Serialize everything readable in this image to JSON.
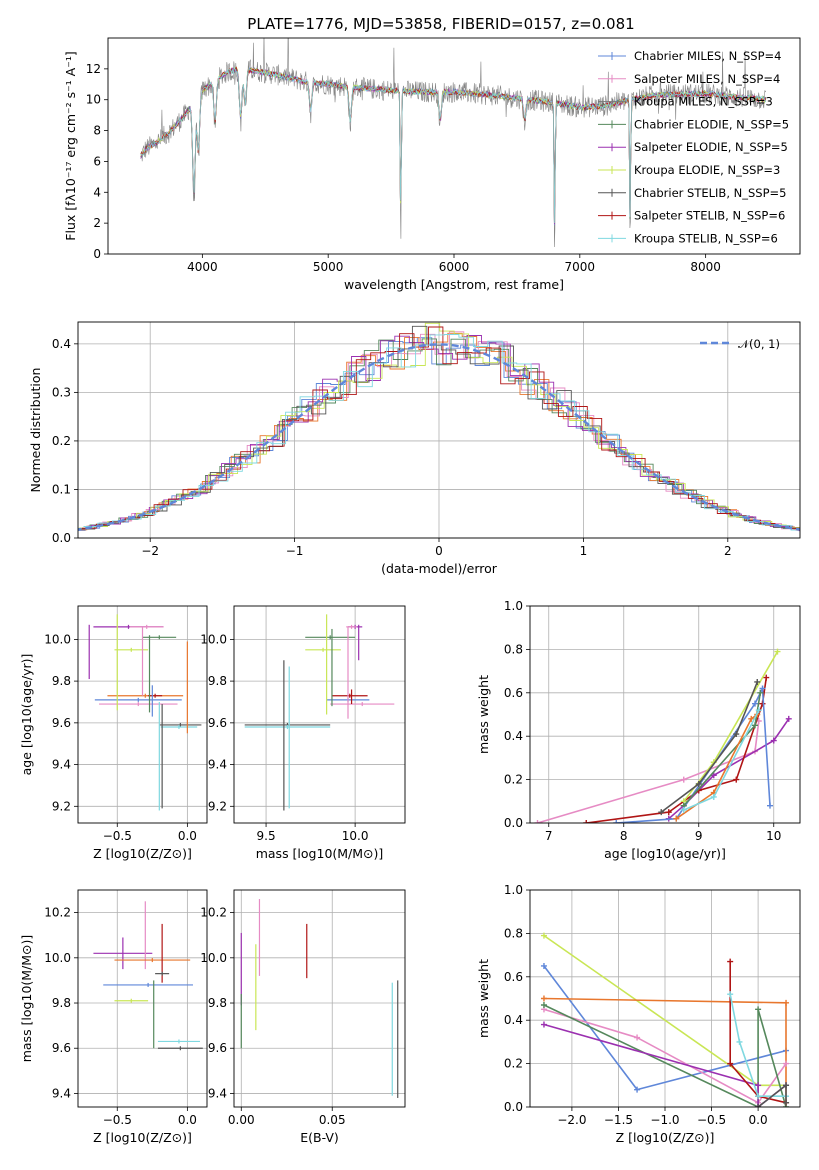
{
  "figure_title": "PLATE=1776, MJD=53858, FIBERID=0157, z=0.081",
  "colors": {
    "blue": "#5f87d9",
    "orange": "#e8772e",
    "pink": "#e68bc4",
    "green": "#55885c",
    "purple": "#9b30b0",
    "yellowgreen": "#c9e655",
    "gray": "#555555",
    "red": "#b01515",
    "cyan": "#7fd8e0"
  },
  "chart_data": [
    {
      "id": "spectrum",
      "type": "line",
      "xlabel": "wavelength [Angstrom, rest frame]",
      "ylabel": "Flux [fλ10⁻¹⁷ erg cm⁻² s⁻¹ A⁻¹]",
      "xlim": [
        3250,
        8750
      ],
      "ylim": [
        0,
        14
      ],
      "xticks": [
        4000,
        5000,
        6000,
        7000,
        8000
      ],
      "yticks": [
        0,
        2,
        4,
        6,
        8,
        10,
        12
      ],
      "grid": false,
      "legend_position": "upper right",
      "series": [
        {
          "name": "Chabrier MILES, N_SSP=4",
          "color": "#5f87d9"
        },
        {
          "name": "Salpeter MILES, N_SSP=4",
          "color": "#e68bc4"
        },
        {
          "name": "Kroupa MILES, N_SSP=3",
          "color": "#777777"
        },
        {
          "name": "Chabrier ELODIE, N_SSP=5",
          "color": "#55885c"
        },
        {
          "name": "Salpeter ELODIE, N_SSP=5",
          "color": "#9b30b0"
        },
        {
          "name": "Kroupa ELODIE, N_SSP=3",
          "color": "#c9e655"
        },
        {
          "name": "Chabrier STELIB, N_SSP=5",
          "color": "#555555"
        },
        {
          "name": "Salpeter STELIB, N_SSP=6",
          "color": "#b01515"
        },
        {
          "name": "Kroupa STELIB, N_SSP=6",
          "color": "#7fd8e0"
        }
      ],
      "continuum": {
        "x": [
          3500,
          3550,
          3650,
          3750,
          3850,
          3950,
          4000,
          4100,
          4200,
          4300,
          4400,
          4600,
          4800,
          5000,
          5200,
          5500,
          5800,
          6000,
          6300,
          6600,
          6800,
          7000,
          7200,
          7400,
          7600,
          8000,
          8200,
          8500
        ],
        "y": [
          6.2,
          6.8,
          7.3,
          8.0,
          8.9,
          10.0,
          10.6,
          11.2,
          11.8,
          12.0,
          11.9,
          11.6,
          11.2,
          11.0,
          10.8,
          10.6,
          10.5,
          10.5,
          10.3,
          10.0,
          9.8,
          9.5,
          9.6,
          10.0,
          10.3,
          10.4,
          10.2,
          10.0
        ]
      },
      "absorption_lines": [
        {
          "x": 3933,
          "depth": 6.5
        },
        {
          "x": 3968,
          "depth": 4.0
        },
        {
          "x": 4101,
          "depth": 3.0
        },
        {
          "x": 4304,
          "depth": 3.5
        },
        {
          "x": 4340,
          "depth": 2.5
        },
        {
          "x": 4861,
          "depth": 2.0
        },
        {
          "x": 5175,
          "depth": 2.5
        },
        {
          "x": 5890,
          "depth": 2.0
        },
        {
          "x": 6563,
          "depth": 1.5
        },
        {
          "x": 5577,
          "depth": 10.5
        },
        {
          "x": 6800,
          "depth": 9.8
        },
        {
          "x": 7400,
          "depth": 9.6
        }
      ]
    },
    {
      "id": "residuals",
      "type": "histogram",
      "xlabel": "(data-model)/error",
      "ylabel": "Normed distribution",
      "xlim": [
        -2.5,
        2.5
      ],
      "ylim": [
        0,
        0.445
      ],
      "xticks": [
        -2,
        -1,
        0,
        1,
        2
      ],
      "xticklabels": [
        "−2",
        "−1",
        "0",
        "1",
        "2"
      ],
      "yticks": [
        0.0,
        0.1,
        0.2,
        0.3,
        0.4
      ],
      "yticklabels": [
        "0.0",
        "0.1",
        "0.2",
        "0.3",
        "0.4"
      ],
      "grid": true,
      "bin_width": 0.1,
      "legend": "𝒩(0, 1)",
      "legend_position": "upper right"
    },
    {
      "id": "age_vs_Z",
      "type": "errorbar",
      "xlabel": "Z [log10(Z/Z⊙)]",
      "ylabel": "age  [log10(age/yr)]",
      "xlim": [
        -0.78,
        0.14
      ],
      "ylim": [
        9.12,
        10.16
      ],
      "xticks": [
        -0.5,
        0.0
      ],
      "xticklabels": [
        "−0.5",
        "0.0"
      ],
      "yticks": [
        9.2,
        9.4,
        9.6,
        9.8,
        10.0
      ],
      "yticklabels": [
        "9.2",
        "9.4",
        "9.6",
        "9.8",
        "10.0"
      ],
      "grid": true,
      "points": [
        {
          "x": -0.42,
          "y": 10.06,
          "xerr": 0.25,
          "yerr": 0.0,
          "color": "#9b30b0"
        },
        {
          "x": -0.29,
          "y": 10.06,
          "xerr": 0.12,
          "yerr": 0.0,
          "color": "#e68bc4"
        },
        {
          "x": -0.2,
          "y": 10.01,
          "xerr": 0.12,
          "yerr": 0.0,
          "color": "#55885c"
        },
        {
          "x": -0.4,
          "y": 9.95,
          "xerr": 0.12,
          "yerr": 0.0,
          "color": "#c9e655"
        },
        {
          "x": -0.3,
          "y": 9.73,
          "xerr": 0.27,
          "yerr": 0.0,
          "color": "#e8772e"
        },
        {
          "x": -0.23,
          "y": 9.73,
          "xerr": 0.05,
          "yerr": 0.0,
          "color": "#b01515"
        },
        {
          "x": -0.35,
          "y": 9.71,
          "xerr": 0.31,
          "yerr": 0.0,
          "color": "#5f87d9"
        },
        {
          "x": -0.35,
          "y": 9.69,
          "xerr": 0.28,
          "yerr": 0.0,
          "color": "#e68bc4"
        },
        {
          "x": -0.05,
          "y": 9.59,
          "xerr": 0.15,
          "yerr": 0.0,
          "color": "#555555"
        },
        {
          "x": -0.06,
          "y": 9.58,
          "xerr": 0.13,
          "yerr": 0.0,
          "color": "#7fd8e0"
        }
      ]
    },
    {
      "id": "age_vs_mass",
      "type": "errorbar",
      "xlabel": "mass [log10(M/M⊙)]",
      "ylabel": "",
      "xlim": [
        9.32,
        10.28
      ],
      "ylim": [
        9.12,
        10.16
      ],
      "xticks": [
        9.5,
        10.0
      ],
      "xticklabels": [
        "9.5",
        "10.0"
      ],
      "yticks": [
        9.2,
        9.4,
        9.6,
        9.8,
        10.0
      ],
      "yticklabels": [
        "9.2",
        "9.4",
        "9.6",
        "9.8",
        "10.0"
      ],
      "grid": true,
      "points": [
        {
          "x": 10.0,
          "y": 10.06,
          "xerr": 0.04,
          "yerr": 0.0,
          "color": "#9b30b0"
        },
        {
          "x": 9.98,
          "y": 10.06,
          "xerr": 0.03,
          "yerr": 0.0,
          "color": "#e68bc4"
        },
        {
          "x": 9.86,
          "y": 10.01,
          "xerr": 0.14,
          "yerr": 0.0,
          "color": "#55885c"
        },
        {
          "x": 9.82,
          "y": 9.95,
          "xerr": 0.1,
          "yerr": 0.0,
          "color": "#c9e655"
        },
        {
          "x": 9.97,
          "y": 9.73,
          "xerr": 0.1,
          "yerr": 0.0,
          "color": "#b01515"
        },
        {
          "x": 9.96,
          "y": 9.71,
          "xerr": 0.12,
          "yerr": 0.0,
          "color": "#5f87d9"
        },
        {
          "x": 10.04,
          "y": 9.69,
          "xerr": 0.18,
          "yerr": 0.0,
          "color": "#e68bc4"
        },
        {
          "x": 9.62,
          "y": 9.59,
          "xerr": 0.24,
          "yerr": 0.0,
          "color": "#555555"
        },
        {
          "x": 9.62,
          "y": 9.58,
          "xerr": 0.24,
          "yerr": 0.0,
          "color": "#7fd8e0"
        }
      ]
    },
    {
      "id": "weight_vs_age",
      "type": "line",
      "xlabel": "age  [log10(age/yr)]",
      "ylabel": "mass weight",
      "xlim": [
        6.75,
        10.35
      ],
      "ylim": [
        0.0,
        1.0
      ],
      "xticks": [
        7,
        8,
        9,
        10
      ],
      "yticks": [
        0.0,
        0.2,
        0.4,
        0.6,
        0.8,
        1.0
      ],
      "yticklabels": [
        "0.0",
        "0.2",
        "0.4",
        "0.6",
        "0.8",
        "1.0"
      ],
      "grid": true,
      "series": [
        {
          "color": "#e68bc4",
          "x": [
            6.85,
            8.8,
            9.75,
            9.8
          ],
          "y": [
            0.0,
            0.2,
            0.33,
            0.47
          ]
        },
        {
          "color": "#9b30b0",
          "x": [
            8.6,
            8.8,
            9.2,
            10.0,
            10.2
          ],
          "y": [
            0.02,
            0.08,
            0.22,
            0.38,
            0.48
          ]
        },
        {
          "color": "#b01515",
          "x": [
            7.5,
            8.6,
            9.0,
            9.5,
            9.85,
            9.9
          ],
          "y": [
            0.0,
            0.05,
            0.15,
            0.2,
            0.55,
            0.67
          ]
        },
        {
          "color": "#5f87d9",
          "x": [
            7.9,
            8.7,
            9.75,
            9.85,
            9.95
          ],
          "y": [
            0.0,
            0.02,
            0.55,
            0.62,
            0.08
          ]
        },
        {
          "color": "#c9e655",
          "x": [
            8.8,
            9.2,
            10.05
          ],
          "y": [
            0.1,
            0.28,
            0.79
          ]
        },
        {
          "color": "#555555",
          "x": [
            8.5,
            9.0,
            9.5,
            9.78
          ],
          "y": [
            0.05,
            0.18,
            0.41,
            0.65
          ]
        },
        {
          "color": "#55885c",
          "x": [
            8.8,
            9.75,
            9.82
          ],
          "y": [
            0.08,
            0.45,
            0.6
          ]
        },
        {
          "color": "#e8772e",
          "x": [
            8.7,
            9.2,
            9.7,
            9.78
          ],
          "y": [
            0.02,
            0.14,
            0.48,
            0.5
          ]
        },
        {
          "color": "#7fd8e0",
          "x": [
            8.8,
            9.2,
            9.8
          ],
          "y": [
            0.06,
            0.12,
            0.52
          ]
        }
      ]
    },
    {
      "id": "mass_vs_Z",
      "type": "errorbar",
      "xlabel": "Z [log10(Z/Z⊙)]",
      "ylabel": "mass [log10(M/M⊙)]",
      "xlim": [
        -0.78,
        0.14
      ],
      "ylim": [
        9.34,
        10.3
      ],
      "xticks": [
        -0.5,
        0.0
      ],
      "xticklabels": [
        "−0.5",
        "0.0"
      ],
      "yticks": [
        9.4,
        9.6,
        9.8,
        10.0,
        10.2
      ],
      "yticklabels": [
        "9.4",
        "9.6",
        "9.8",
        "10.0",
        "10.2"
      ],
      "grid": true,
      "points": [
        {
          "x": -0.46,
          "y": 10.02,
          "xerr": 0.21,
          "yerr": 0.07,
          "color": "#9b30b0"
        },
        {
          "x": -0.3,
          "y": 10.1,
          "xerr": 0.0,
          "yerr": 0.15,
          "color": "#e68bc4"
        },
        {
          "x": -0.25,
          "y": 9.99,
          "xerr": 0.27,
          "yerr": 0.0,
          "color": "#e8772e"
        },
        {
          "x": -0.18,
          "y": 10.02,
          "xerr": 0.0,
          "yerr": 0.13,
          "color": "#b01515"
        },
        {
          "x": -0.18,
          "y": 9.93,
          "xerr": 0.05,
          "yerr": 0.0,
          "color": "#555555"
        },
        {
          "x": -0.28,
          "y": 9.88,
          "xerr": 0.32,
          "yerr": 0.0,
          "color": "#5f87d9"
        },
        {
          "x": -0.4,
          "y": 9.81,
          "xerr": 0.12,
          "yerr": 0.0,
          "color": "#c9e655"
        },
        {
          "x": -0.24,
          "y": 9.75,
          "xerr": 0.0,
          "yerr": 0.15,
          "color": "#55885c"
        },
        {
          "x": -0.06,
          "y": 9.63,
          "xerr": 0.15,
          "yerr": 0.0,
          "color": "#7fd8e0"
        },
        {
          "x": -0.05,
          "y": 9.6,
          "xerr": 0.16,
          "yerr": 0.0,
          "color": "#555555"
        }
      ]
    },
    {
      "id": "mass_vs_ebv",
      "type": "errorbar",
      "xlabel": "E(B-V)",
      "ylabel": "",
      "xlim": [
        -0.004,
        0.09
      ],
      "ylim": [
        9.34,
        10.3
      ],
      "xticks": [
        0.0,
        0.05
      ],
      "xticklabels": [
        "0.00",
        "0.05"
      ],
      "yticks": [
        9.4,
        9.6,
        9.8,
        10.0,
        10.2
      ],
      "yticklabels": [
        "9.4",
        "9.6",
        "9.8",
        "10.0",
        "10.2"
      ],
      "grid": true,
      "points": [
        {
          "x": 0.0,
          "y": 9.95,
          "xerr": 0.0,
          "yerr": 0.16,
          "color": "#9b30b0"
        },
        {
          "x": 0.0,
          "y": 9.72,
          "xerr": 0.0,
          "yerr": 0.12,
          "color": "#55885c"
        },
        {
          "x": 0.008,
          "y": 9.87,
          "xerr": 0.0,
          "yerr": 0.19,
          "color": "#c9e655"
        },
        {
          "x": 0.01,
          "y": 10.09,
          "xerr": 0.0,
          "yerr": 0.17,
          "color": "#e68bc4"
        },
        {
          "x": 0.036,
          "y": 10.03,
          "xerr": 0.0,
          "yerr": 0.12,
          "color": "#b01515"
        },
        {
          "x": 0.083,
          "y": 9.64,
          "xerr": 0.0,
          "yerr": 0.25,
          "color": "#7fd8e0"
        },
        {
          "x": 0.086,
          "y": 9.64,
          "xerr": 0.0,
          "yerr": 0.26,
          "color": "#555555"
        }
      ]
    },
    {
      "id": "weight_vs_Z",
      "type": "line",
      "xlabel": "Z [log10(Z/Z⊙)]",
      "ylabel": "mass weight",
      "xlim": [
        -2.45,
        0.45
      ],
      "ylim": [
        0.0,
        1.0
      ],
      "xticks": [
        -2.0,
        -1.5,
        -1.0,
        -0.5,
        0.0
      ],
      "xticklabels": [
        "−2.0",
        "−1.5",
        "−1.0",
        "−0.5",
        "0.0"
      ],
      "yticks": [
        0.0,
        0.2,
        0.4,
        0.6,
        0.8,
        1.0
      ],
      "yticklabels": [
        "0.0",
        "0.2",
        "0.4",
        "0.6",
        "0.8",
        "1.0"
      ],
      "grid": true,
      "series": [
        {
          "color": "#c9e655",
          "x": [
            -2.3,
            0.0,
            0.0,
            0.3
          ],
          "y": [
            0.79,
            0.1,
            0.1,
            0.1
          ]
        },
        {
          "color": "#5f87d9",
          "x": [
            -2.3,
            -1.3,
            0.3
          ],
          "y": [
            0.65,
            0.08,
            0.26
          ]
        },
        {
          "color": "#e8772e",
          "x": [
            -2.3,
            0.3,
            0.3
          ],
          "y": [
            0.5,
            0.48,
            0.02
          ]
        },
        {
          "color": "#e68bc4",
          "x": [
            -2.3,
            -1.3,
            0.0,
            0.3
          ],
          "y": [
            0.45,
            0.32,
            0.02,
            0.2
          ]
        },
        {
          "color": "#55885c",
          "x": [
            -2.3,
            0.0,
            0.0,
            0.3
          ],
          "y": [
            0.47,
            0.0,
            0.45,
            0.0
          ]
        },
        {
          "color": "#9b30b0",
          "x": [
            -2.3,
            0.0,
            0.0,
            0.3
          ],
          "y": [
            0.38,
            0.1,
            0.0,
            0.1
          ]
        },
        {
          "color": "#b01515",
          "x": [
            -0.3,
            -0.3,
            0.0,
            0.3
          ],
          "y": [
            0.67,
            0.2,
            0.05,
            0.02
          ]
        },
        {
          "color": "#7fd8e0",
          "x": [
            -0.3,
            -0.2,
            0.0,
            0.3
          ],
          "y": [
            0.52,
            0.3,
            0.05,
            0.05
          ]
        },
        {
          "color": "#555555",
          "x": [
            0.0,
            0.3,
            0.3
          ],
          "y": [
            0.0,
            0.1,
            0.02
          ]
        }
      ]
    }
  ]
}
